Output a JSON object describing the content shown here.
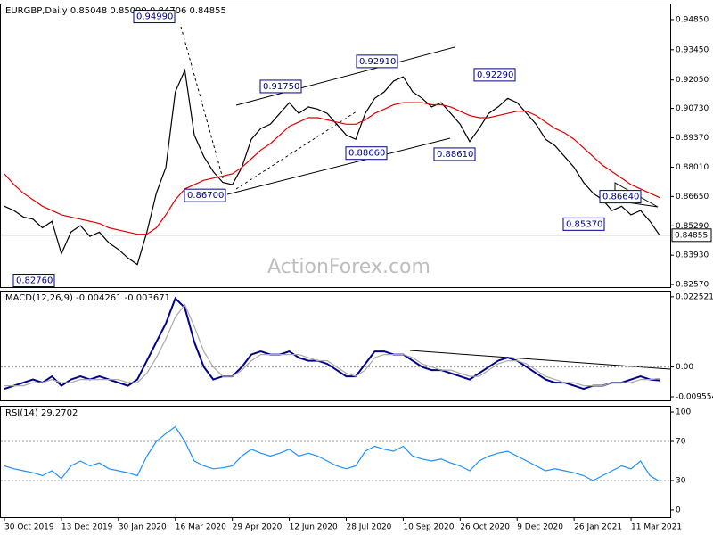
{
  "chart_data": [
    {
      "type": "line",
      "title": "EURGBP,Daily  0.85048 0.85099 0.84706 0.84855",
      "watermark": "ActionForex.com",
      "categories": [
        "30 Oct 2019",
        null,
        null,
        null,
        null,
        null,
        "13 Dec 2019",
        null,
        null,
        null,
        null,
        null,
        "30 Jan 2020",
        null,
        null,
        null,
        null,
        null,
        "16 Mar 2020",
        null,
        null,
        null,
        null,
        null,
        "29 Apr 2020",
        null,
        null,
        null,
        null,
        null,
        "12 Jun 2020",
        null,
        null,
        null,
        null,
        null,
        "28 Jul 2020",
        null,
        null,
        null,
        null,
        null,
        "10 Sep 2020",
        null,
        null,
        null,
        null,
        null,
        "26 Oct 2020",
        null,
        null,
        null,
        null,
        null,
        "9 Dec 2020",
        null,
        null,
        null,
        null,
        null,
        "26 Jan 2021",
        null,
        null,
        null,
        null,
        null,
        "11 Mar 2021",
        null,
        null,
        null
      ],
      "series": [
        {
          "color": "#000000",
          "values": [
            0.862,
            0.86,
            0.857,
            0.856,
            0.852,
            0.855,
            0.84,
            0.85,
            0.853,
            0.848,
            0.85,
            0.845,
            0.842,
            0.838,
            0.835,
            0.85,
            0.868,
            0.88,
            0.915,
            0.925,
            0.895,
            0.885,
            0.878,
            0.873,
            0.872,
            0.88,
            0.893,
            0.898,
            0.9,
            0.905,
            0.91,
            0.905,
            0.908,
            0.907,
            0.905,
            0.9,
            0.895,
            0.893,
            0.905,
            0.912,
            0.915,
            0.92,
            0.922,
            0.915,
            0.912,
            0.908,
            0.91,
            0.905,
            0.9,
            0.892,
            0.898,
            0.905,
            0.908,
            0.912,
            0.91,
            0.905,
            0.9,
            0.893,
            0.89,
            0.885,
            0.88,
            0.873,
            0.868,
            0.865,
            0.86,
            0.862,
            0.858,
            0.86,
            0.855,
            0.8486
          ]
        },
        {
          "color": "#e00000",
          "values": [
            0.877,
            0.872,
            0.868,
            0.865,
            0.862,
            0.86,
            0.858,
            0.857,
            0.856,
            0.855,
            0.854,
            0.852,
            0.851,
            0.85,
            0.849,
            0.849,
            0.852,
            0.858,
            0.865,
            0.87,
            0.872,
            0.874,
            0.875,
            0.876,
            0.877,
            0.88,
            0.884,
            0.888,
            0.891,
            0.895,
            0.899,
            0.901,
            0.903,
            0.903,
            0.902,
            0.901,
            0.9,
            0.9,
            0.902,
            0.905,
            0.907,
            0.909,
            0.91,
            0.91,
            0.91,
            0.909,
            0.909,
            0.908,
            0.906,
            0.904,
            0.903,
            0.903,
            0.904,
            0.905,
            0.906,
            0.906,
            0.904,
            0.901,
            0.898,
            0.896,
            0.893,
            0.889,
            0.885,
            0.881,
            0.878,
            0.875,
            0.872,
            0.87,
            0.868,
            0.866
          ]
        }
      ],
      "ylim": [
        0.8245,
        0.9555
      ],
      "yticks": [
        {
          "value": 0.9485,
          "label": "0.94850"
        },
        {
          "value": 0.9345,
          "label": "0.93450"
        },
        {
          "value": 0.9205,
          "label": "0.92050"
        },
        {
          "value": 0.9073,
          "label": "0.90730"
        },
        {
          "value": 0.8937,
          "label": "0.89370"
        },
        {
          "value": 0.8801,
          "label": "0.88010"
        },
        {
          "value": 0.8665,
          "label": "0.86650"
        },
        {
          "value": 0.8529,
          "label": "0.85290"
        },
        {
          "value": 0.8393,
          "label": "0.83930"
        },
        {
          "value": 0.8257,
          "label": "0.82570"
        }
      ],
      "annotations": [
        {
          "value": 0.9499,
          "label": "0.94990"
        },
        {
          "value": 0.9175,
          "label": "0.91750"
        },
        {
          "value": 0.9291,
          "label": "0.92910"
        },
        {
          "value": 0.9229,
          "label": "0.92290"
        },
        {
          "value": 0.8866,
          "label": "0.88660"
        },
        {
          "value": 0.8861,
          "label": "0.88610"
        },
        {
          "value": 0.867,
          "label": "0.86700"
        },
        {
          "value": 0.8664,
          "label": "0.86640"
        },
        {
          "value": 0.8537,
          "label": "0.85370"
        },
        {
          "value": 0.8276,
          "label": "0.82760"
        }
      ],
      "last_price": {
        "value": 0.84855,
        "label": "0.84855"
      }
    },
    {
      "type": "line",
      "title": "MACD(12,26,9) -0.004261 -0.003671",
      "series": [
        {
          "color": "#00008b",
          "values": [
            -0.007,
            -0.006,
            -0.005,
            -0.004,
            -0.005,
            -0.003,
            -0.006,
            -0.004,
            -0.003,
            -0.004,
            -0.003,
            -0.004,
            -0.005,
            -0.006,
            -0.004,
            0.002,
            0.008,
            0.014,
            0.022,
            0.019,
            0.008,
            0.0,
            -0.004,
            -0.003,
            -0.003,
            0.0,
            0.004,
            0.005,
            0.004,
            0.004,
            0.005,
            0.003,
            0.002,
            0.002,
            0.001,
            -0.001,
            -0.003,
            -0.003,
            0.001,
            0.005,
            0.005,
            0.004,
            0.004,
            0.002,
            0.0,
            -0.001,
            -0.001,
            -0.002,
            -0.003,
            -0.004,
            -0.002,
            0.0,
            0.002,
            0.003,
            0.002,
            0.0,
            -0.002,
            -0.004,
            -0.005,
            -0.005,
            -0.006,
            -0.007,
            -0.006,
            -0.006,
            -0.005,
            -0.005,
            -0.004,
            -0.003,
            -0.004,
            -0.0043
          ]
        },
        {
          "color": "#a9a9a9",
          "values": [
            -0.006,
            -0.006,
            -0.006,
            -0.005,
            -0.005,
            -0.004,
            -0.005,
            -0.005,
            -0.004,
            -0.004,
            -0.004,
            -0.004,
            -0.004,
            -0.005,
            -0.005,
            -0.002,
            0.003,
            0.009,
            0.016,
            0.02,
            0.013,
            0.005,
            0.0,
            -0.003,
            -0.003,
            -0.001,
            0.002,
            0.004,
            0.004,
            0.004,
            0.004,
            0.004,
            0.003,
            0.002,
            0.002,
            0.0,
            -0.002,
            -0.003,
            -0.001,
            0.003,
            0.004,
            0.004,
            0.004,
            0.003,
            0.001,
            0.0,
            -0.001,
            -0.001,
            -0.002,
            -0.003,
            -0.003,
            -0.001,
            0.001,
            0.002,
            0.002,
            0.001,
            -0.001,
            -0.003,
            -0.004,
            -0.005,
            -0.005,
            -0.006,
            -0.006,
            -0.006,
            -0.005,
            -0.005,
            -0.005,
            -0.004,
            -0.004,
            -0.0037
          ]
        }
      ],
      "ylim": [
        -0.0107,
        0.0242
      ],
      "yticks": [
        0.022521,
        {
          "value": 0,
          "label": "0.00"
        },
        -0.009554
      ]
    },
    {
      "type": "line",
      "title": "RSI(14) 29.2702",
      "series": [
        {
          "color": "#1e90ff",
          "values": [
            45,
            42,
            40,
            38,
            35,
            40,
            32,
            45,
            50,
            45,
            48,
            42,
            40,
            38,
            35,
            55,
            70,
            78,
            85,
            70,
            50,
            45,
            42,
            43,
            45,
            55,
            62,
            58,
            55,
            58,
            62,
            55,
            58,
            55,
            50,
            45,
            42,
            45,
            60,
            65,
            62,
            60,
            65,
            55,
            52,
            50,
            52,
            48,
            45,
            40,
            50,
            55,
            58,
            60,
            55,
            50,
            45,
            40,
            42,
            40,
            38,
            35,
            30,
            35,
            40,
            45,
            42,
            50,
            35,
            29.27
          ]
        }
      ],
      "ylim": [
        -7.3,
        105.5
      ],
      "yticks": [
        100,
        70,
        30,
        0
      ],
      "levels": [
        70,
        30
      ]
    }
  ]
}
